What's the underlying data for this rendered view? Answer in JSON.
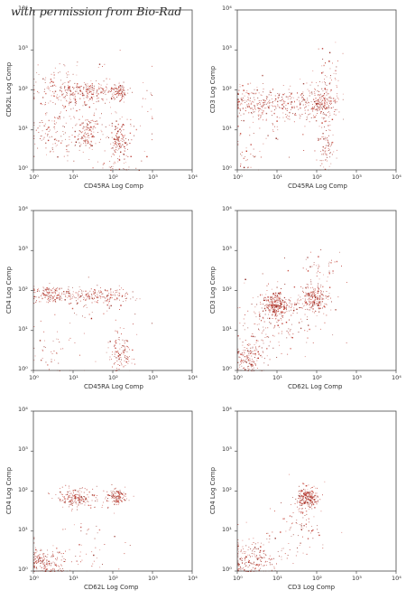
{
  "credit": "with permission from Bio-Rad",
  "chart_data": [
    {
      "type": "scatter",
      "title": "",
      "xlabel": "CD45RA Log Comp",
      "ylabel": "CD62L Log Comp",
      "xscale": "log",
      "yscale": "log",
      "xlim": [
        1,
        10000
      ],
      "ylim": [
        1,
        10000
      ],
      "xticks": [
        "10⁰",
        "10¹",
        "10²",
        "10³",
        "10⁴"
      ],
      "yticks": [
        "10⁰",
        "10¹",
        "10²",
        "10³",
        "10⁴"
      ],
      "grid": false,
      "legend": "none",
      "point_color": "#b8302a",
      "clusters": [
        {
          "cx": 1.35,
          "cy": 0.92,
          "sx": 0.12,
          "sy": 0.2,
          "n": 110
        },
        {
          "cx": 2.15,
          "cy": 0.75,
          "sx": 0.12,
          "sy": 0.25,
          "n": 130
        },
        {
          "cx": 1.2,
          "cy": 1.95,
          "sx": 0.5,
          "sy": 0.15,
          "n": 260
        },
        {
          "cx": 2.15,
          "cy": 1.98,
          "sx": 0.1,
          "sy": 0.1,
          "n": 90
        },
        {
          "cx": 0.55,
          "cy": 0.95,
          "sx": 0.3,
          "sy": 0.3,
          "n": 90
        },
        {
          "cx": 1.5,
          "cy": 1.4,
          "sx": 0.8,
          "sy": 0.5,
          "n": 160
        },
        {
          "cx": 0.6,
          "cy": 2.3,
          "sx": 0.35,
          "sy": 0.25,
          "n": 30
        },
        {
          "cx": 2.2,
          "cy": 0.1,
          "sx": 0.3,
          "sy": 0.1,
          "n": 30
        }
      ]
    },
    {
      "type": "scatter",
      "title": "",
      "xlabel": "CD45RA Log Comp",
      "ylabel": "CD3 Log Comp",
      "xscale": "log",
      "yscale": "log",
      "xlim": [
        1,
        10000
      ],
      "ylim": [
        1,
        10000
      ],
      "xticks": [
        "10⁰",
        "10¹",
        "10²",
        "10³",
        "10⁴"
      ],
      "yticks": [
        "10⁰",
        "10¹",
        "10²",
        "10³",
        "10⁴"
      ],
      "grid": false,
      "legend": "none",
      "point_color": "#b8302a",
      "clusters": [
        {
          "cx": 0.4,
          "cy": 1.65,
          "sx": 0.3,
          "sy": 0.2,
          "n": 160
        },
        {
          "cx": 2.1,
          "cy": 1.65,
          "sx": 0.2,
          "sy": 0.2,
          "n": 200
        },
        {
          "cx": 1.2,
          "cy": 1.65,
          "sx": 0.5,
          "sy": 0.2,
          "n": 160
        },
        {
          "cx": 2.25,
          "cy": 0.6,
          "sx": 0.12,
          "sy": 0.25,
          "n": 80
        },
        {
          "cx": 0.2,
          "cy": 0.4,
          "sx": 0.2,
          "sy": 0.3,
          "n": 30
        },
        {
          "cx": 2.3,
          "cy": 2.3,
          "sx": 0.2,
          "sy": 0.4,
          "n": 60
        },
        {
          "cx": 1.0,
          "cy": 1.2,
          "sx": 0.7,
          "sy": 0.4,
          "n": 50
        }
      ]
    },
    {
      "type": "scatter",
      "title": "",
      "xlabel": "CD45RA Log Comp",
      "ylabel": "CD4 Log Comp",
      "xscale": "log",
      "yscale": "log",
      "xlim": [
        1,
        10000
      ],
      "ylim": [
        1,
        10000
      ],
      "xticks": [
        "10⁰",
        "10¹",
        "10²",
        "10³",
        "10⁴"
      ],
      "yticks": [
        "10⁰",
        "10¹",
        "10²",
        "10³",
        "10⁴"
      ],
      "grid": false,
      "legend": "none",
      "point_color": "#b8302a",
      "clusters": [
        {
          "cx": 0.4,
          "cy": 1.9,
          "sx": 0.2,
          "sy": 0.1,
          "n": 140
        },
        {
          "cx": 1.8,
          "cy": 1.88,
          "sx": 0.3,
          "sy": 0.1,
          "n": 120
        },
        {
          "cx": 1.1,
          "cy": 1.88,
          "sx": 0.35,
          "sy": 0.1,
          "n": 80
        },
        {
          "cx": 2.2,
          "cy": 0.4,
          "sx": 0.15,
          "sy": 0.25,
          "n": 120
        },
        {
          "cx": 0.4,
          "cy": 0.3,
          "sx": 0.25,
          "sy": 0.25,
          "n": 30
        },
        {
          "cx": 1.6,
          "cy": 1.1,
          "sx": 0.7,
          "sy": 0.5,
          "n": 50
        }
      ]
    },
    {
      "type": "scatter",
      "title": "",
      "xlabel": "CD62L Log Comp",
      "ylabel": "CD3 Log Comp",
      "xscale": "log",
      "yscale": "log",
      "xlim": [
        1,
        10000
      ],
      "ylim": [
        1,
        10000
      ],
      "xticks": [
        "10⁰",
        "10¹",
        "10²",
        "10³",
        "10⁴"
      ],
      "yticks": [
        "10⁰",
        "10¹",
        "10²",
        "10³",
        "10⁴"
      ],
      "grid": false,
      "legend": "none",
      "point_color": "#b8302a",
      "clusters": [
        {
          "cx": 0.95,
          "cy": 1.65,
          "sx": 0.15,
          "sy": 0.15,
          "n": 260
        },
        {
          "cx": 1.95,
          "cy": 1.8,
          "sx": 0.15,
          "sy": 0.15,
          "n": 220
        },
        {
          "cx": 0.3,
          "cy": 0.3,
          "sx": 0.2,
          "sy": 0.25,
          "n": 160
        },
        {
          "cx": 1.3,
          "cy": 1.5,
          "sx": 0.6,
          "sy": 0.4,
          "n": 160
        },
        {
          "cx": 2.1,
          "cy": 2.5,
          "sx": 0.3,
          "sy": 0.3,
          "n": 50
        },
        {
          "cx": 0.7,
          "cy": 1.0,
          "sx": 0.4,
          "sy": 0.4,
          "n": 60
        }
      ]
    },
    {
      "type": "scatter",
      "title": "",
      "xlabel": "CD62L Log Comp",
      "ylabel": "CD4 Log Comp",
      "xscale": "log",
      "yscale": "log",
      "xlim": [
        1,
        10000
      ],
      "ylim": [
        1,
        10000
      ],
      "xticks": [
        "10⁰",
        "10¹",
        "10²",
        "10³",
        "10⁴"
      ],
      "yticks": [
        "10⁰",
        "10¹",
        "10²",
        "10³",
        "10⁴"
      ],
      "grid": false,
      "legend": "none",
      "point_color": "#b8302a",
      "clusters": [
        {
          "cx": 1.05,
          "cy": 1.85,
          "sx": 0.2,
          "sy": 0.12,
          "n": 170
        },
        {
          "cx": 2.1,
          "cy": 1.9,
          "sx": 0.12,
          "sy": 0.1,
          "n": 130
        },
        {
          "cx": 0.3,
          "cy": 0.2,
          "sx": 0.25,
          "sy": 0.2,
          "n": 190
        },
        {
          "cx": 1.2,
          "cy": 0.6,
          "sx": 0.7,
          "sy": 0.4,
          "n": 60
        },
        {
          "cx": 1.5,
          "cy": 1.8,
          "sx": 0.35,
          "sy": 0.12,
          "n": 40
        }
      ]
    },
    {
      "type": "scatter",
      "title": "",
      "xlabel": "CD3 Log Comp",
      "ylabel": "CD4 Log Comp",
      "xscale": "log",
      "yscale": "log",
      "xlim": [
        1,
        10000
      ],
      "ylim": [
        1,
        10000
      ],
      "xticks": [
        "10⁰",
        "10¹",
        "10²",
        "10³",
        "10⁴"
      ],
      "yticks": [
        "10⁰",
        "10¹",
        "10²",
        "10³",
        "10⁴"
      ],
      "grid": false,
      "legend": "none",
      "point_color": "#b8302a",
      "clusters": [
        {
          "cx": 1.75,
          "cy": 1.85,
          "sx": 0.13,
          "sy": 0.12,
          "n": 220
        },
        {
          "cx": 0.35,
          "cy": 0.3,
          "sx": 0.3,
          "sy": 0.25,
          "n": 200
        },
        {
          "cx": 1.6,
          "cy": 1.4,
          "sx": 0.25,
          "sy": 0.3,
          "n": 70
        },
        {
          "cx": 1.2,
          "cy": 0.7,
          "sx": 0.6,
          "sy": 0.4,
          "n": 50
        }
      ]
    }
  ]
}
